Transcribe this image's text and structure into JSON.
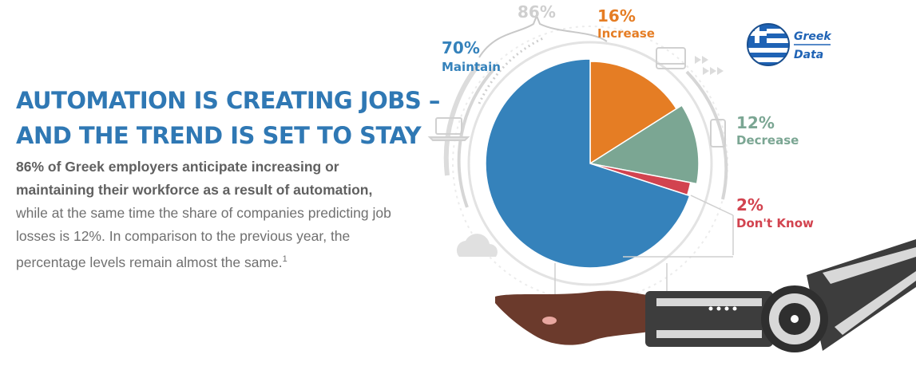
{
  "headline": {
    "line1": "AUTOMATION IS CREATING JOBS –",
    "line2": "AND THE TREND IS SET TO STAY"
  },
  "body": {
    "bold_part": "86% of Greek employers anticipate increasing or maintaining their workforce as a result of automation,",
    "regular_part": " while at the same time the share of companies predicting job losses is 12%. In comparison to the previous year, the percentage levels remain almost the same.",
    "footnote_ref": "1"
  },
  "badge": {
    "line1": "Greek",
    "line2": "Data",
    "icon": "greek-flag-icon"
  },
  "chart_data": {
    "type": "pie",
    "combined_label": "86%",
    "slices": [
      {
        "label_pct": "16%",
        "label_name": "Increase",
        "value": 16,
        "color": "#e57d24"
      },
      {
        "label_pct": "12%",
        "label_name": "Decrease",
        "value": 12,
        "color": "#7ba693"
      },
      {
        "label_pct": "2%",
        "label_name": "Don't Know",
        "value": 2,
        "color": "#d2434f"
      },
      {
        "label_pct": "70%",
        "label_name": "Maintain",
        "value": 70,
        "color": "#3582bb"
      }
    ]
  },
  "colors": {
    "title": "#2f78b4",
    "text": "#707070",
    "ring": "#d9d9d9",
    "hand": "#6b3a2c",
    "robot": "#444444"
  }
}
